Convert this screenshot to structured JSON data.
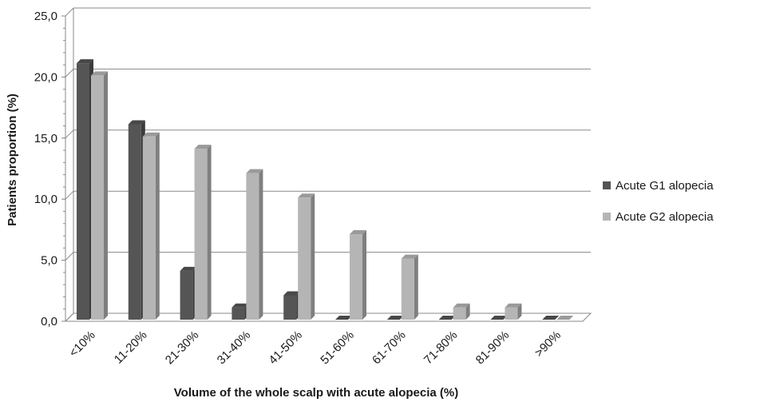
{
  "chart_data": {
    "type": "bar",
    "style": "3d-clustered-column",
    "title": "",
    "xlabel": "Volume of the whole scalp with acute alopecia (%)",
    "ylabel": "Patients proportion (%)",
    "ylim": [
      0,
      25
    ],
    "yticks": [
      "0,0",
      "5,0",
      "10,0",
      "15,0",
      "20,0",
      "25,0"
    ],
    "ytick_values": [
      0,
      5,
      10,
      15,
      20,
      25
    ],
    "categories": [
      "<10%",
      "11-20%",
      "21-30%",
      "31-40%",
      "41-50%",
      "51-60%",
      "61-70%",
      "71-80%",
      "81-90%",
      ">90%"
    ],
    "series": [
      {
        "name": "Acute G1 alopecia",
        "color": "#555555",
        "values": [
          21,
          16,
          4,
          1,
          2,
          0,
          0,
          0,
          0,
          0
        ]
      },
      {
        "name": "Acute G2 alopecia",
        "color": "#b5b5b5",
        "values": [
          20,
          15,
          14,
          12,
          10,
          7,
          5,
          1,
          1,
          0
        ]
      }
    ],
    "grid": true,
    "legend_position": "right"
  }
}
